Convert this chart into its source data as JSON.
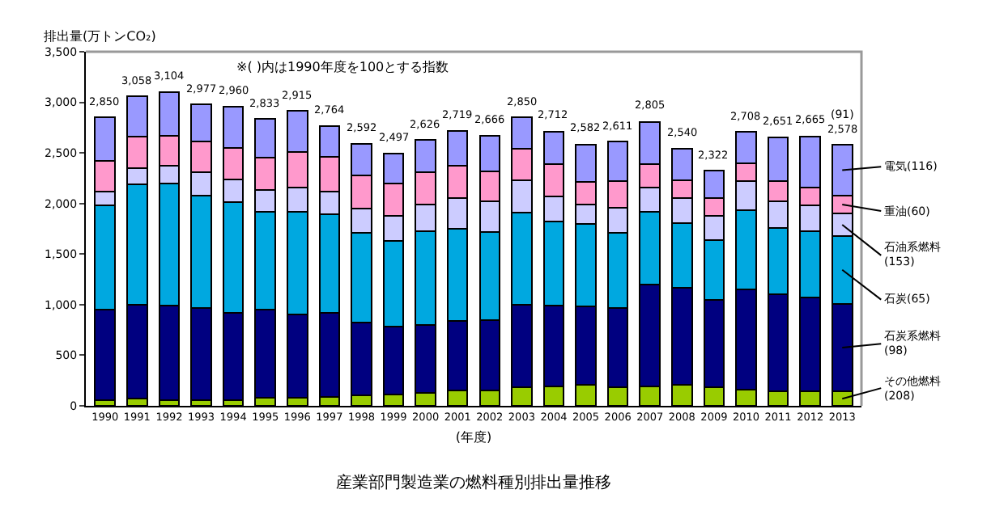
{
  "chart_data": {
    "type": "bar",
    "stacked": true,
    "title": "産業部門製造業の燃料種別排出量推移",
    "xlabel": "(年度)",
    "ylabel": "排出量(万トンCO₂)",
    "categories": [
      "1990",
      "1991",
      "1992",
      "1993",
      "1994",
      "1995",
      "1996",
      "1997",
      "1998",
      "1999",
      "2000",
      "2001",
      "2002",
      "2003",
      "2004",
      "2005",
      "2006",
      "2007",
      "2008",
      "2009",
      "2010",
      "2011",
      "2012",
      "2013"
    ],
    "series": [
      {
        "name": "その他燃料(208)",
        "color": "#99cc00",
        "values": [
          60,
          70,
          60,
          60,
          60,
          80,
          80,
          90,
          100,
          110,
          130,
          150,
          150,
          180,
          190,
          210,
          180,
          190,
          210,
          180,
          160,
          140,
          140,
          140
        ]
      },
      {
        "name": "石炭系燃料(98)",
        "color": "#000080",
        "values": [
          890,
          930,
          930,
          910,
          860,
          870,
          820,
          830,
          720,
          670,
          670,
          690,
          700,
          820,
          800,
          770,
          790,
          1010,
          960,
          870,
          990,
          960,
          930,
          870
        ]
      },
      {
        "name": "石炭(65)",
        "color": "#00a8e0",
        "values": [
          1030,
          1190,
          1210,
          1110,
          1090,
          970,
          1020,
          970,
          890,
          850,
          930,
          910,
          870,
          910,
          830,
          820,
          740,
          720,
          640,
          590,
          780,
          660,
          660,
          670
        ]
      },
      {
        "name": "石油系燃料(153)",
        "color": "#ccccff",
        "values": [
          140,
          160,
          170,
          230,
          230,
          210,
          240,
          230,
          240,
          250,
          260,
          300,
          300,
          320,
          250,
          190,
          250,
          240,
          240,
          240,
          290,
          260,
          250,
          220
        ]
      },
      {
        "name": "重油(60)",
        "color": "#ff99cc",
        "values": [
          300,
          310,
          300,
          300,
          310,
          320,
          350,
          340,
          330,
          320,
          320,
          320,
          300,
          310,
          320,
          220,
          260,
          230,
          180,
          170,
          180,
          200,
          180,
          180
        ]
      },
      {
        "name": "電気(116)",
        "color": "#9999ff",
        "values": [
          430,
          398,
          434,
          367,
          410,
          383,
          405,
          304,
          312,
          297,
          316,
          349,
          346,
          310,
          322,
          372,
          391,
          415,
          310,
          272,
          308,
          431,
          505,
          498
        ]
      }
    ],
    "totals": [
      "2,850",
      "3,058",
      "3,104",
      "2,977",
      "2,960",
      "2,833",
      "2,915",
      "2,764",
      "2,592",
      "2,497",
      "2,626",
      "2,719",
      "2,666",
      "2,850",
      "2,712",
      "2,582",
      "2,611",
      "2,805",
      "2,540",
      "2,322",
      "2,708",
      "2,651",
      "2,665",
      "2,578"
    ],
    "ylim": [
      0,
      3500
    ],
    "yticks": [
      0,
      500,
      {
        "value": 1000,
        "label": "1,000"
      },
      {
        "value": 1500,
        "label": "1,500"
      },
      {
        "value": 2000,
        "label": "2,000"
      },
      {
        "value": 2500,
        "label": "2,500"
      },
      {
        "value": 3000,
        "label": "3,000"
      },
      {
        "value": 3500,
        "label": "3,500"
      }
    ],
    "grid": false,
    "legend": "right",
    "annotations": [
      "※( )内は1990年度を100とする指数",
      {
        "text": "(91)",
        "x": "2013",
        "y": 2578
      }
    ]
  }
}
